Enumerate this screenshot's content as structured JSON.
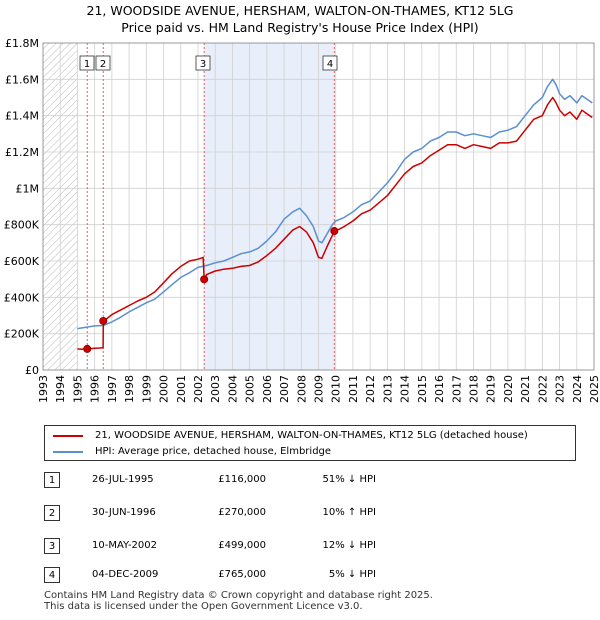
{
  "title": {
    "line1": "21, WOODSIDE AVENUE, HERSHAM, WALTON-ON-THAMES, KT12 5LG",
    "line2": "Price paid vs. HM Land Registry's House Price Index (HPI)"
  },
  "legend": {
    "property": "21, WOODSIDE AVENUE, HERSHAM, WALTON-ON-THAMES, KT12 5LG (detached house)",
    "hpi": "HPI: Average price, detached house, Elmbridge"
  },
  "colors": {
    "property": "#cc0000",
    "hpi": "#5b8fd0",
    "shade": "#e8eefa",
    "vline": "#e06060",
    "hatch": "#bbbbbb",
    "grid": "#d0d0d0"
  },
  "transactions": [
    {
      "num": "1",
      "date": "26-JUL-1995",
      "price": "£116,000",
      "hpi": "51% ↓ HPI"
    },
    {
      "num": "2",
      "date": "30-JUN-1996",
      "price": "£270,000",
      "hpi": "10% ↑ HPI"
    },
    {
      "num": "3",
      "date": "10-MAY-2002",
      "price": "£499,000",
      "hpi": "12% ↓ HPI"
    },
    {
      "num": "4",
      "date": "04-DEC-2009",
      "price": "£765,000",
      "hpi": "5% ↓ HPI"
    }
  ],
  "footer": {
    "line1": "Contains HM Land Registry data © Crown copyright and database right 2025.",
    "line2": "This data is licensed under the Open Government Licence v3.0."
  },
  "chart_data": {
    "type": "line",
    "title": "21, WOODSIDE AVENUE, HERSHAM, WALTON-ON-THAMES, KT12 5LG — Price paid vs. HM Land Registry's House Price Index (HPI)",
    "xlabel": "",
    "ylabel": "",
    "xlim": [
      1993,
      2025
    ],
    "ylim": [
      0,
      1800000
    ],
    "x_ticks": [
      1993,
      1994,
      1995,
      1996,
      1997,
      1998,
      1999,
      2000,
      2001,
      2002,
      2003,
      2004,
      2005,
      2006,
      2007,
      2008,
      2009,
      2010,
      2011,
      2012,
      2013,
      2014,
      2015,
      2016,
      2017,
      2018,
      2019,
      2020,
      2021,
      2022,
      2023,
      2024,
      2025
    ],
    "y_ticks": [
      {
        "value": 0,
        "label": "£0"
      },
      {
        "value": 200000,
        "label": "£200K"
      },
      {
        "value": 400000,
        "label": "£400K"
      },
      {
        "value": 600000,
        "label": "£600K"
      },
      {
        "value": 800000,
        "label": "£800K"
      },
      {
        "value": 1000000,
        "label": "£1M"
      },
      {
        "value": 1200000,
        "label": "£1.2M"
      },
      {
        "value": 1400000,
        "label": "£1.4M"
      },
      {
        "value": 1600000,
        "label": "£1.6M"
      },
      {
        "value": 1800000,
        "label": "£1.8M"
      }
    ],
    "grid": true,
    "legend_position": "below",
    "hatched_region": [
      1993,
      1995.0
    ],
    "shaded_region": [
      2002.36,
      2009.92
    ],
    "markers": [
      {
        "label": "1",
        "x": 1995.57,
        "y": 116000
      },
      {
        "label": "2",
        "x": 1996.5,
        "y": 270000
      },
      {
        "label": "3",
        "x": 2002.36,
        "y": 499000
      },
      {
        "label": "4",
        "x": 2009.92,
        "y": 765000
      }
    ],
    "series": [
      {
        "name": "21, WOODSIDE AVENUE, HERSHAM, WALTON-ON-THAMES, KT12 5LG (detached house)",
        "color": "#cc0000",
        "x": [
          1995.0,
          1995.25,
          1995.57,
          1995.8,
          1996.0,
          1996.3,
          1996.49,
          1996.5,
          1996.7,
          1997.0,
          1997.5,
          1998.0,
          1998.5,
          1999.0,
          1999.5,
          2000.0,
          2000.5,
          2001.0,
          2001.5,
          2002.0,
          2002.3,
          2002.36,
          2002.5,
          2003.0,
          2003.5,
          2004.0,
          2004.5,
          2005.0,
          2005.5,
          2006.0,
          2006.5,
          2007.0,
          2007.5,
          2007.9,
          2008.3,
          2008.7,
          2009.0,
          2009.2,
          2009.5,
          2009.8,
          2009.92,
          2010.2,
          2010.5,
          2011.0,
          2011.5,
          2012.0,
          2012.5,
          2013.0,
          2013.5,
          2014.0,
          2014.5,
          2015.0,
          2015.5,
          2016.0,
          2016.5,
          2017.0,
          2017.5,
          2018.0,
          2018.5,
          2019.0,
          2019.5,
          2020.0,
          2020.5,
          2021.0,
          2021.5,
          2022.0,
          2022.3,
          2022.6,
          2022.8,
          2023.0,
          2023.3,
          2023.6,
          2024.0,
          2024.3,
          2024.6,
          2024.9
        ],
        "values": [
          116000,
          114000,
          116000,
          118000,
          120000,
          121000,
          123000,
          270000,
          282000,
          305000,
          330000,
          355000,
          380000,
          400000,
          430000,
          480000,
          530000,
          570000,
          600000,
          610000,
          620000,
          499000,
          525000,
          545000,
          555000,
          560000,
          570000,
          575000,
          595000,
          630000,
          670000,
          720000,
          770000,
          790000,
          760000,
          700000,
          620000,
          615000,
          680000,
          740000,
          765000,
          775000,
          790000,
          820000,
          860000,
          880000,
          920000,
          960000,
          1020000,
          1080000,
          1120000,
          1140000,
          1180000,
          1210000,
          1240000,
          1240000,
          1220000,
          1240000,
          1230000,
          1220000,
          1250000,
          1250000,
          1260000,
          1320000,
          1380000,
          1400000,
          1460000,
          1500000,
          1470000,
          1430000,
          1400000,
          1420000,
          1380000,
          1430000,
          1410000,
          1390000
        ]
      },
      {
        "name": "HPI: Average price, detached house, Elmbridge",
        "color": "#5b8fd0",
        "x": [
          1995.0,
          1995.5,
          1996.0,
          1996.5,
          1997.0,
          1997.5,
          1998.0,
          1998.5,
          1999.0,
          1999.5,
          2000.0,
          2000.5,
          2001.0,
          2001.5,
          2002.0,
          2002.5,
          2003.0,
          2003.5,
          2004.0,
          2004.5,
          2005.0,
          2005.5,
          2006.0,
          2006.5,
          2007.0,
          2007.5,
          2007.9,
          2008.3,
          2008.7,
          2009.0,
          2009.2,
          2009.5,
          2009.8,
          2010.0,
          2010.5,
          2011.0,
          2011.5,
          2012.0,
          2012.5,
          2013.0,
          2013.5,
          2014.0,
          2014.5,
          2015.0,
          2015.5,
          2016.0,
          2016.5,
          2017.0,
          2017.5,
          2018.0,
          2018.5,
          2019.0,
          2019.5,
          2020.0,
          2020.5,
          2021.0,
          2021.5,
          2022.0,
          2022.3,
          2022.6,
          2022.8,
          2023.0,
          2023.3,
          2023.6,
          2024.0,
          2024.3,
          2024.6,
          2024.9
        ],
        "values": [
          228000,
          235000,
          243000,
          245000,
          265000,
          290000,
          320000,
          345000,
          370000,
          390000,
          430000,
          470000,
          510000,
          535000,
          565000,
          575000,
          590000,
          600000,
          620000,
          640000,
          650000,
          670000,
          710000,
          760000,
          830000,
          870000,
          890000,
          850000,
          790000,
          710000,
          700000,
          750000,
          800000,
          820000,
          840000,
          870000,
          910000,
          930000,
          980000,
          1030000,
          1090000,
          1160000,
          1200000,
          1220000,
          1260000,
          1280000,
          1310000,
          1310000,
          1290000,
          1300000,
          1290000,
          1280000,
          1310000,
          1320000,
          1340000,
          1400000,
          1460000,
          1500000,
          1560000,
          1600000,
          1570000,
          1520000,
          1490000,
          1510000,
          1470000,
          1510000,
          1490000,
          1470000
        ]
      }
    ]
  }
}
